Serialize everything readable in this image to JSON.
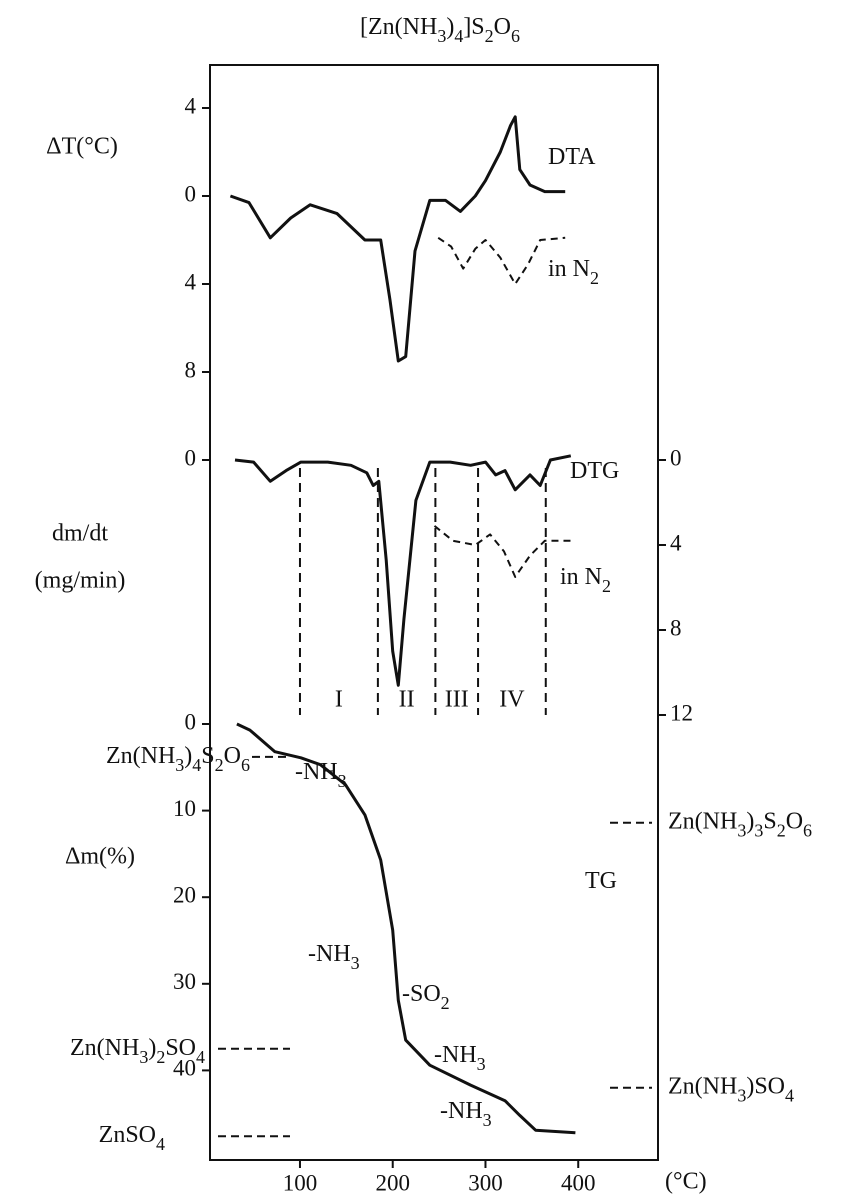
{
  "chart_data": [
    {
      "type": "line",
      "title": "[Zn(NH3)4]S2O6",
      "ylabel": "ΔT(°C)",
      "ylim": [
        -8,
        6
      ],
      "yticks": [
        4,
        0,
        {
          "value": -4,
          "label": "4"
        },
        {
          "value": -8,
          "label": "8"
        }
      ],
      "series": [
        {
          "name": "DTA",
          "color": "#111",
          "dashed": false,
          "x": [
            25,
            45,
            68,
            90,
            111,
            140,
            170,
            187,
            197,
            206,
            214,
            224,
            240,
            257,
            273,
            289,
            300,
            316,
            327,
            332,
            337,
            348,
            364,
            386
          ],
          "values": [
            0,
            -0.3,
            -1.9,
            -1.0,
            -0.4,
            -0.8,
            -2,
            -2,
            -4.7,
            -7.5,
            -7.3,
            -2.5,
            -0.2,
            -0.2,
            -0.7,
            0,
            0.7,
            2,
            3.2,
            3.6,
            1.2,
            0.5,
            0.2,
            0.2
          ]
        },
        {
          "name": "in N2",
          "color": "#111",
          "dashed": true,
          "x": [
            249,
            263,
            276,
            289,
            300,
            316,
            332,
            346,
            359,
            386
          ],
          "values": [
            -1.9,
            -2.3,
            -3.3,
            -2.4,
            -2,
            -2.8,
            -4,
            -3.1,
            -2,
            -1.9
          ]
        }
      ]
    },
    {
      "type": "line",
      "ylabel": [
        "dm/dt",
        "(mg/min)"
      ],
      "y_inverted": true,
      "ylim": [
        0,
        12
      ],
      "yticks": [
        0
      ],
      "y2lim": [
        0,
        12
      ],
      "y2ticks": [
        0,
        4,
        8,
        12
      ],
      "series": [
        {
          "name": "DTG",
          "color": "#111",
          "dashed": false,
          "x": [
            30,
            50,
            68,
            85,
            101,
            130,
            155,
            172,
            179,
            185,
            193,
            200,
            206,
            212,
            225,
            240,
            262,
            284,
            300,
            311,
            321,
            332,
            348,
            359,
            370,
            392
          ],
          "values": [
            0,
            0.1,
            1,
            0.5,
            0.1,
            0.1,
            0.25,
            0.6,
            1.2,
            1,
            4.7,
            9,
            10.6,
            7.5,
            1.9,
            0.1,
            0.1,
            0.25,
            0.1,
            0.7,
            0.5,
            1.4,
            0.7,
            1.2,
            0,
            -0.2
          ]
        },
        {
          "name": "in N2",
          "color": "#111",
          "dashed": true,
          "x": [
            245,
            265,
            289,
            305,
            320,
            332,
            348,
            364,
            392
          ],
          "values": [
            3.1,
            3.8,
            4,
            3.5,
            4.3,
            5.5,
            4.5,
            3.8,
            3.8
          ]
        }
      ],
      "boundaries": [
        100,
        184,
        246,
        292,
        365
      ],
      "stages": [
        "I",
        "II",
        "III",
        "IV"
      ]
    },
    {
      "type": "line",
      "ylabel": "Δm(%)",
      "y_inverted": true,
      "xlim": [
        3,
        486
      ],
      "xticks": [
        100,
        200,
        300,
        400
      ],
      "xlabel": "(°C)",
      "ylim": [
        0,
        50
      ],
      "yticks": [
        0,
        10,
        20,
        30,
        40
      ],
      "series": [
        {
          "name": "TG",
          "color": "#111",
          "dashed": false,
          "x": [
            32,
            46,
            73,
            101,
            122,
            149,
            170,
            187,
            200,
            206,
            214,
            240,
            284,
            321,
            337,
            354,
            397
          ],
          "values": [
            0,
            0.7,
            3.2,
            3.9,
            4.7,
            7,
            10.5,
            15.7,
            23.8,
            31.9,
            36.5,
            39.4,
            41.7,
            43.5,
            45.2,
            46.9,
            47.2
          ]
        }
      ],
      "annotations": [
        "-NH3",
        "-NH3",
        "-SO2",
        "-NH3",
        "-NH3"
      ],
      "levels": [
        {
          "label": "Zn(NH3)4S2O6",
          "value": 3.8,
          "side": "left"
        },
        {
          "label": "Zn(NH3)2SO4",
          "value": 37.5,
          "side": "left"
        },
        {
          "label": "ZnSO4",
          "value": 47.6,
          "side": "left"
        },
        {
          "label": "Zn(NH3)3S2O6",
          "value": 11.4,
          "side": "right"
        },
        {
          "label": "Zn(NH3)SO4",
          "value": 42,
          "side": "right"
        }
      ]
    }
  ]
}
